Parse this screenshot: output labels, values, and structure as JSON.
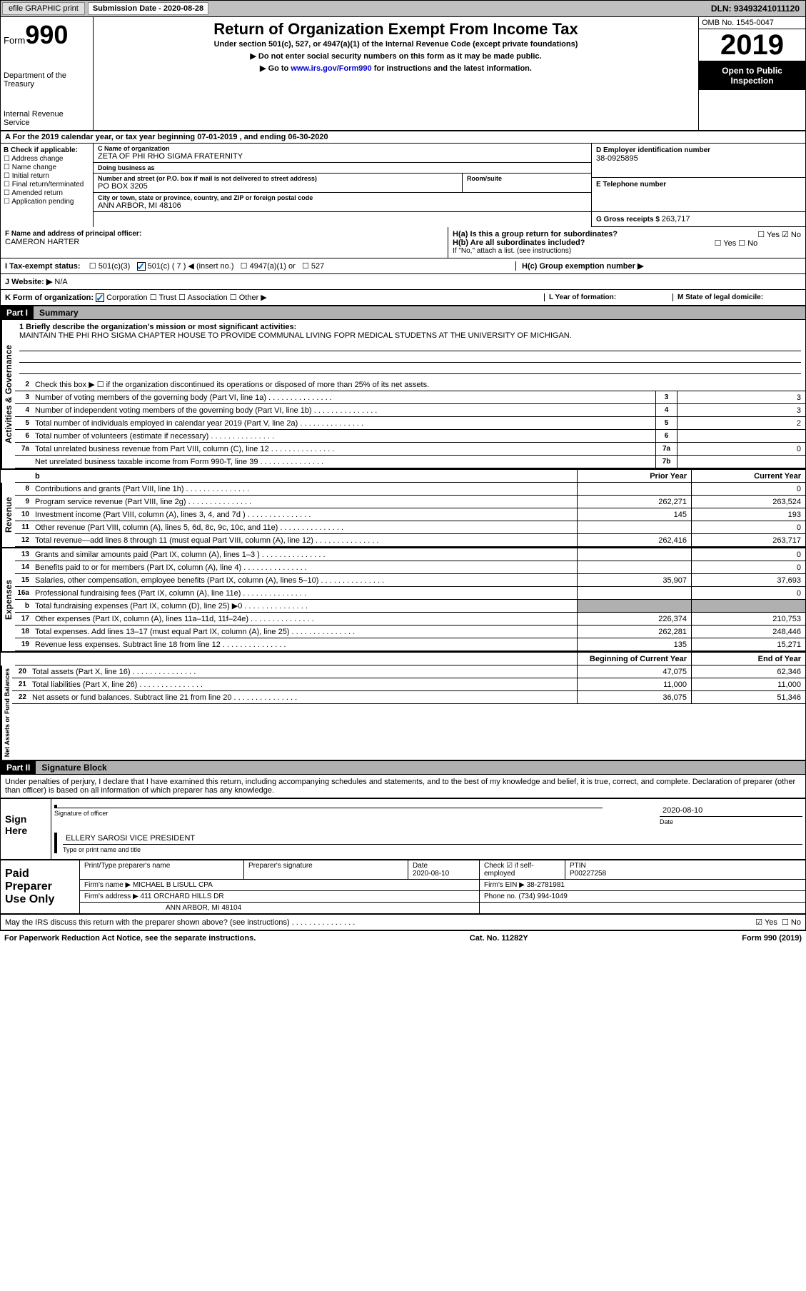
{
  "topBar": {
    "efile": "efile GRAPHIC print",
    "subDateLabel": "Submission Date - ",
    "subDate": "2020-08-28",
    "dln": "DLN: 93493241011120"
  },
  "header": {
    "formLabel": "Form",
    "formNum": "990",
    "dept1": "Department of the Treasury",
    "dept2": "Internal Revenue Service",
    "title": "Return of Organization Exempt From Income Tax",
    "subtitle": "Under section 501(c), 527, or 4947(a)(1) of the Internal Revenue Code (except private foundations)",
    "note1": "▶ Do not enter social security numbers on this form as it may be made public.",
    "note2Prefix": "▶ Go to ",
    "note2Link": "www.irs.gov/Form990",
    "note2Suffix": " for instructions and the latest information.",
    "omb": "OMB No. 1545-0047",
    "year": "2019",
    "openPublic": "Open to Public Inspection"
  },
  "rowA": "A For the 2019 calendar year, or tax year beginning 07-01-2019    , and ending 06-30-2020",
  "sectionB": {
    "label": "B Check if applicable:",
    "opts": [
      "☐ Address change",
      "☐ Name change",
      "☐ Initial return",
      "☐ Final return/terminated",
      "☐ Amended return",
      "☐ Application pending"
    ]
  },
  "orgName": {
    "lbl": "C Name of organization",
    "val": "ZETA OF PHI RHO SIGMA FRATERNITY"
  },
  "dba": {
    "lbl": "Doing business as",
    "val": ""
  },
  "address": {
    "lbl": "Number and street (or P.O. box if mail is not delivered to street address)",
    "val": "PO BOX 3205",
    "suite": "Room/suite"
  },
  "city": {
    "lbl": "City or town, state or province, country, and ZIP or foreign postal code",
    "val": "ANN ARBOR, MI  48106"
  },
  "ein": {
    "lbl": "D Employer identification number",
    "val": "38-0925895"
  },
  "phone": {
    "lbl": "E Telephone number",
    "val": ""
  },
  "gross": {
    "lbl": "G Gross receipts $ ",
    "val": "263,717"
  },
  "officer": {
    "lbl": "F  Name and address of principal officer:",
    "val": "CAMERON HARTER"
  },
  "hA": {
    "lbl": "H(a)  Is this a group return for subordinates?",
    "yes": "☐ Yes",
    "no": "☑ No"
  },
  "hB": {
    "lbl": "H(b)  Are all subordinates included?",
    "yes": "☐ Yes",
    "no": "☐ No",
    "note": "If \"No,\" attach a list. (see instructions)"
  },
  "hC": "H(c)  Group exemption number ▶",
  "taxExempt": {
    "lbl": "I  Tax-exempt status:",
    "opt1": "501(c)(3)",
    "opt2": "501(c) ( 7 ) ◀ (insert no.)",
    "opt3": "4947(a)(1) or",
    "opt4": "527"
  },
  "website": {
    "lbl": "J  Website: ▶",
    "val": "N/A"
  },
  "formOrg": {
    "lbl": "K Form of organization:",
    "corp": "Corporation",
    "trust": "Trust",
    "assoc": "Association",
    "other": "Other ▶"
  },
  "yearForm": "L Year of formation:",
  "stateDom": "M State of legal domicile:",
  "part1": {
    "hdr": "Part I",
    "title": "Summary"
  },
  "summary": {
    "l1": "1  Briefly describe the organization's mission or most significant activities:",
    "mission": "MAINTAIN THE PHI RHO SIGMA CHAPTER HOUSE TO PROVIDE COMMUNAL LIVING FOPR MEDICAL STUDETNS AT THE UNIVERSITY OF MICHIGAN.",
    "l2": "Check this box ▶ ☐  if the organization discontinued its operations or disposed of more than 25% of its net assets.",
    "lines": [
      {
        "n": "3",
        "t": "Number of voting members of the governing body (Part VI, line 1a)",
        "box": "3",
        "v": "3"
      },
      {
        "n": "4",
        "t": "Number of independent voting members of the governing body (Part VI, line 1b)",
        "box": "4",
        "v": "3"
      },
      {
        "n": "5",
        "t": "Total number of individuals employed in calendar year 2019 (Part V, line 2a)",
        "box": "5",
        "v": "2"
      },
      {
        "n": "6",
        "t": "Total number of volunteers (estimate if necessary)",
        "box": "6",
        "v": ""
      },
      {
        "n": "7a",
        "t": "Total unrelated business revenue from Part VIII, column (C), line 12",
        "box": "7a",
        "v": "0"
      },
      {
        "n": "",
        "t": "Net unrelated business taxable income from Form 990-T, line 39",
        "box": "7b",
        "v": ""
      }
    ],
    "colHdrs": {
      "prior": "Prior Year",
      "curr": "Current Year"
    },
    "revenue": [
      {
        "n": "8",
        "t": "Contributions and grants (Part VIII, line 1h)",
        "p": "",
        "c": "0"
      },
      {
        "n": "9",
        "t": "Program service revenue (Part VIII, line 2g)",
        "p": "262,271",
        "c": "263,524"
      },
      {
        "n": "10",
        "t": "Investment income (Part VIII, column (A), lines 3, 4, and 7d )",
        "p": "145",
        "c": "193"
      },
      {
        "n": "11",
        "t": "Other revenue (Part VIII, column (A), lines 5, 6d, 8c, 9c, 10c, and 11e)",
        "p": "",
        "c": "0"
      },
      {
        "n": "12",
        "t": "Total revenue—add lines 8 through 11 (must equal Part VIII, column (A), line 12)",
        "p": "262,416",
        "c": "263,717"
      }
    ],
    "expenses": [
      {
        "n": "13",
        "t": "Grants and similar amounts paid (Part IX, column (A), lines 1–3 )",
        "p": "",
        "c": "0"
      },
      {
        "n": "14",
        "t": "Benefits paid to or for members (Part IX, column (A), line 4)",
        "p": "",
        "c": "0"
      },
      {
        "n": "15",
        "t": "Salaries, other compensation, employee benefits (Part IX, column (A), lines 5–10)",
        "p": "35,907",
        "c": "37,693"
      },
      {
        "n": "16a",
        "t": "Professional fundraising fees (Part IX, column (A), line 11e)",
        "p": "",
        "c": "0"
      },
      {
        "n": "b",
        "t": "Total fundraising expenses (Part IX, column (D), line 25) ▶0",
        "p": "shaded",
        "c": "shaded"
      },
      {
        "n": "17",
        "t": "Other expenses (Part IX, column (A), lines 11a–11d, 11f–24e)",
        "p": "226,374",
        "c": "210,753"
      },
      {
        "n": "18",
        "t": "Total expenses. Add lines 13–17 (must equal Part IX, column (A), line 25)",
        "p": "262,281",
        "c": "248,446"
      },
      {
        "n": "19",
        "t": "Revenue less expenses. Subtract line 18 from line 12",
        "p": "135",
        "c": "15,271"
      }
    ],
    "netHdrs": {
      "begin": "Beginning of Current Year",
      "end": "End of Year"
    },
    "netAssets": [
      {
        "n": "20",
        "t": "Total assets (Part X, line 16)",
        "p": "47,075",
        "c": "62,346"
      },
      {
        "n": "21",
        "t": "Total liabilities (Part X, line 26)",
        "p": "11,000",
        "c": "11,000"
      },
      {
        "n": "22",
        "t": "Net assets or fund balances. Subtract line 21 from line 20",
        "p": "36,075",
        "c": "51,346"
      }
    ]
  },
  "sideLabels": {
    "act": "Activities & Governance",
    "rev": "Revenue",
    "exp": "Expenses",
    "net": "Net Assets or Fund Balances"
  },
  "part2": {
    "hdr": "Part II",
    "title": "Signature Block"
  },
  "penalties": "Under penalties of perjury, I declare that I have examined this return, including accompanying schedules and statements, and to the best of my knowledge and belief, it is true, correct, and complete. Declaration of preparer (other than officer) is based on all information of which preparer has any knowledge.",
  "sign": {
    "here": "Sign Here",
    "sigOfficer": "Signature of officer",
    "date": "Date",
    "dateVal": "2020-08-10",
    "name": "ELLERY SAROSI  VICE PRESIDENT",
    "nameLbl": "Type or print name and title"
  },
  "prep": {
    "title": "Paid Preparer Use Only",
    "r1": {
      "c1": "Print/Type preparer's name",
      "c2": "Preparer's signature",
      "c3": "Date",
      "c3v": "2020-08-10",
      "c4": "Check ☑ if self-employed",
      "c5": "PTIN",
      "c5v": "P00227258"
    },
    "r2": {
      "lbl": "Firm's name    ▶",
      "val": "MICHAEL B LISULL CPA",
      "einLbl": "Firm's EIN ▶",
      "ein": "38-2781981"
    },
    "r3": {
      "lbl": "Firm's address ▶",
      "val": "411 ORCHARD HILLS DR",
      "phoneLbl": "Phone no.",
      "phone": "(734) 994-1049"
    },
    "r4": "ANN ARBOR, MI  48104"
  },
  "discuss": {
    "t": "May the IRS discuss this return with the preparer shown above? (see instructions)",
    "yes": "☑ Yes",
    "no": "☐ No"
  },
  "footer": {
    "l": "For Paperwork Reduction Act Notice, see the separate instructions.",
    "m": "Cat. No. 11282Y",
    "r": "Form 990 (2019)"
  }
}
